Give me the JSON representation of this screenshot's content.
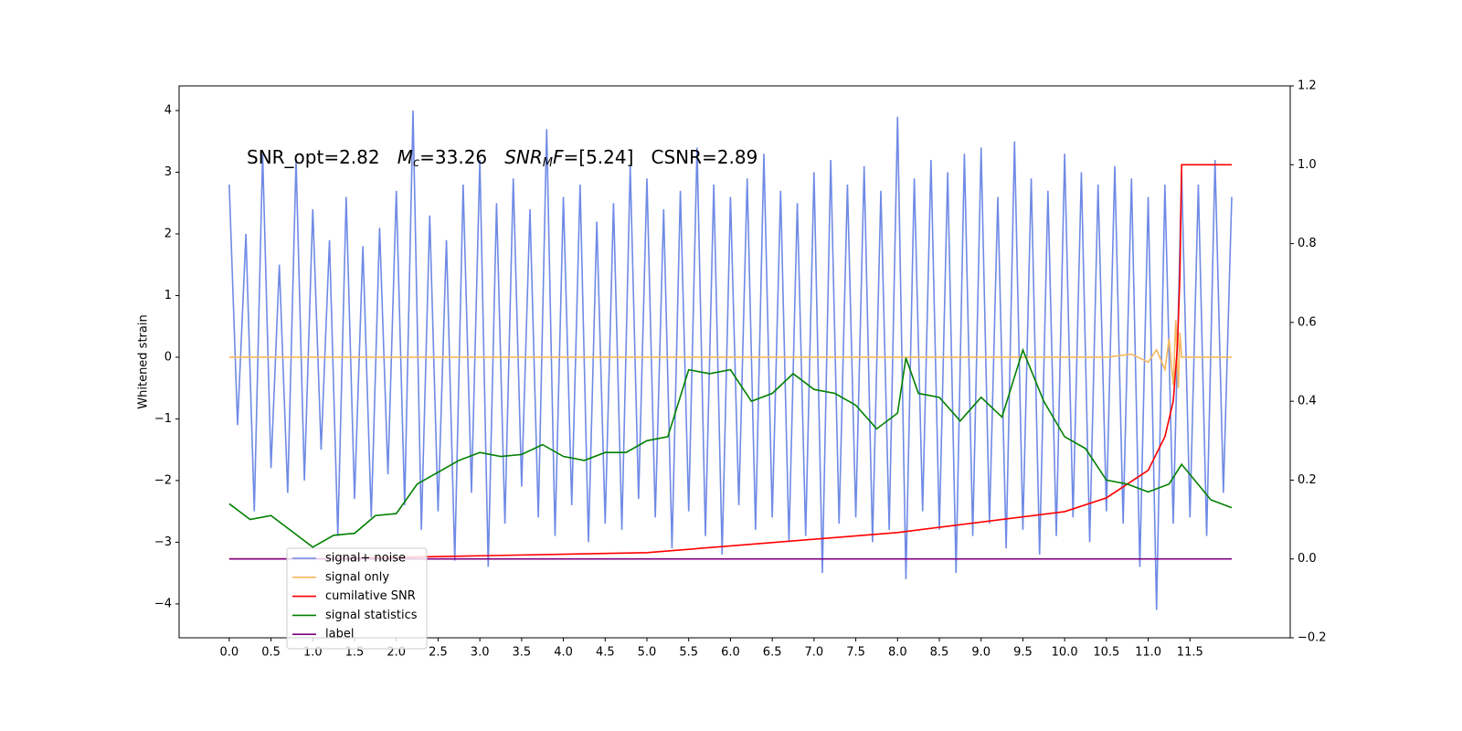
{
  "chart_data": {
    "type": "line",
    "ylabel": "Whitened strain",
    "annotation": [
      {
        "text": "SNR_opt=2.82"
      },
      {
        "italic": "M",
        "sub": "c",
        "text": "=33.26"
      },
      {
        "italic": "SNR",
        "sub": "M",
        "italic_after": "F",
        "text": "=[5.24]"
      },
      {
        "text": "CSNR=2.89"
      }
    ],
    "xlim": [
      -0.6,
      12.7
    ],
    "ylim": [
      -4.55,
      4.4
    ],
    "y2lim": [
      -0.2,
      1.2
    ],
    "xticks": [
      {
        "value": 0,
        "label": "0.0"
      },
      0.5,
      {
        "value": 1,
        "label": "1.0"
      },
      1.5,
      {
        "value": 2,
        "label": "2.0"
      },
      2.5,
      {
        "value": 3,
        "label": "3.0"
      },
      3.5,
      {
        "value": 4,
        "label": "4.0"
      },
      4.5,
      {
        "value": 5,
        "label": "5.0"
      },
      5.5,
      {
        "value": 6,
        "label": "6.0"
      },
      6.5,
      {
        "value": 7,
        "label": "7.0"
      },
      7.5,
      {
        "value": 8,
        "label": "8.0"
      },
      8.5,
      {
        "value": 9,
        "label": "9.0"
      },
      9.5,
      {
        "value": 10,
        "label": "10.0"
      },
      10.5,
      {
        "value": 11,
        "label": "11.0"
      },
      11.5
    ],
    "yticks": [
      {
        "value": -4,
        "label": "−4"
      },
      {
        "value": -3,
        "label": "−3"
      },
      {
        "value": -2,
        "label": "−2"
      },
      {
        "value": -1,
        "label": "−1"
      },
      0,
      1,
      2,
      3,
      4
    ],
    "y2ticks": [
      {
        "value": -0.2,
        "label": "−0.2"
      },
      {
        "value": 0,
        "label": "0.0"
      },
      0.2,
      0.4,
      0.6,
      0.8,
      {
        "value": 1,
        "label": "1.0"
      },
      1.2
    ],
    "legend": "lower left",
    "series": [
      {
        "name": "signal+ noise",
        "color": "#6f8ae6",
        "axis": "y",
        "x": [
          0,
          0.1,
          0.2,
          0.3,
          0.4,
          0.5,
          0.6,
          0.7,
          0.8,
          0.9,
          1,
          1.1,
          1.2,
          1.3,
          1.4,
          1.5,
          1.6,
          1.7,
          1.8,
          1.9,
          2,
          2.1,
          2.2,
          2.3,
          2.4,
          2.5,
          2.6,
          2.7,
          2.8,
          2.9,
          3,
          3.1,
          3.2,
          3.3,
          3.4,
          3.5,
          3.6,
          3.7,
          3.8,
          3.9,
          4,
          4.1,
          4.2,
          4.3,
          4.4,
          4.5,
          4.6,
          4.7,
          4.8,
          4.9,
          5,
          5.1,
          5.2,
          5.3,
          5.4,
          5.5,
          5.6,
          5.7,
          5.8,
          5.9,
          6,
          6.1,
          6.2,
          6.3,
          6.4,
          6.5,
          6.6,
          6.7,
          6.8,
          6.9,
          7,
          7.1,
          7.2,
          7.3,
          7.4,
          7.5,
          7.6,
          7.7,
          7.8,
          7.9,
          8,
          8.1,
          8.2,
          8.3,
          8.4,
          8.5,
          8.6,
          8.7,
          8.8,
          8.9,
          9,
          9.1,
          9.2,
          9.3,
          9.4,
          9.5,
          9.6,
          9.7,
          9.8,
          9.9,
          10,
          10.1,
          10.2,
          10.3,
          10.4,
          10.5,
          10.6,
          10.7,
          10.8,
          10.9,
          11,
          11.1,
          11.2,
          11.3,
          11.4,
          11.5,
          11.6,
          11.7,
          11.8,
          11.9,
          12
        ],
        "values": [
          2.8,
          -1.1,
          2.0,
          -2.5,
          3.3,
          -1.8,
          1.5,
          -2.2,
          3.2,
          -2.0,
          2.4,
          -1.5,
          1.9,
          -2.9,
          2.6,
          -2.3,
          1.8,
          -2.6,
          2.1,
          -1.9,
          2.7,
          -2.4,
          4.0,
          -2.8,
          2.3,
          -2.5,
          1.9,
          -3.3,
          2.8,
          -2.2,
          3.2,
          -3.4,
          2.5,
          -2.7,
          2.9,
          -2.1,
          2.4,
          -2.6,
          3.7,
          -2.9,
          2.6,
          -2.4,
          2.8,
          -3.0,
          2.2,
          -2.7,
          2.5,
          -2.8,
          3.1,
          -2.3,
          2.9,
          -2.6,
          2.4,
          -3.1,
          2.7,
          -2.5,
          3.4,
          -2.9,
          2.8,
          -3.2,
          2.6,
          -2.4,
          2.9,
          -2.8,
          3.3,
          -2.6,
          2.7,
          -3.0,
          2.5,
          -2.9,
          3.0,
          -3.5,
          3.2,
          -2.7,
          2.8,
          -2.6,
          3.1,
          -3.0,
          2.7,
          -2.8,
          3.9,
          -3.6,
          2.9,
          -2.5,
          3.2,
          -2.8,
          3.0,
          -3.5,
          3.3,
          -2.9,
          3.4,
          -2.7,
          2.6,
          -3.1,
          3.5,
          -2.8,
          2.9,
          -3.2,
          2.7,
          -2.9,
          3.3,
          -2.6,
          3.0,
          -3.0,
          2.8,
          -2.5,
          3.1,
          -2.7,
          2.9,
          -3.4,
          2.6,
          -4.1,
          2.8,
          -2.7,
          3.0,
          -2.6,
          2.8,
          -2.9,
          3.2,
          -2.2,
          2.6
        ]
      },
      {
        "name": "signal only",
        "color": "#f5b860",
        "axis": "y",
        "x": [
          0,
          10.5,
          10.8,
          11.0,
          11.1,
          11.2,
          11.25,
          11.3,
          11.33,
          11.36,
          11.38,
          11.4,
          12
        ],
        "values": [
          0,
          0,
          0.05,
          -0.08,
          0.12,
          -0.2,
          0.3,
          -0.45,
          0.6,
          -0.5,
          0.4,
          0,
          0
        ]
      },
      {
        "name": "cumilative SNR",
        "color": "#ff0000",
        "axis": "y2",
        "x": [
          0,
          1,
          3,
          5,
          8,
          10,
          10.5,
          11,
          11.2,
          11.3,
          11.35,
          11.38,
          11.4,
          12
        ],
        "values": [
          0,
          0,
          0.008,
          0.016,
          0.067,
          0.12,
          0.155,
          0.225,
          0.31,
          0.4,
          0.54,
          0.72,
          1.0,
          1.0
        ]
      },
      {
        "name": "signal statistics",
        "color": "#008000",
        "axis": "y2",
        "x": [
          0,
          0.25,
          0.5,
          0.75,
          1,
          1.25,
          1.5,
          1.75,
          2,
          2.25,
          2.5,
          2.75,
          3,
          3.25,
          3.5,
          3.75,
          4,
          4.25,
          4.5,
          4.75,
          5,
          5.25,
          5.5,
          5.75,
          6,
          6.25,
          6.5,
          6.75,
          7,
          7.25,
          7.5,
          7.75,
          8,
          8.1,
          8.25,
          8.5,
          8.75,
          9,
          9.25,
          9.5,
          9.75,
          10,
          10.25,
          10.5,
          10.75,
          11,
          11.25,
          11.4,
          11.75,
          12
        ],
        "values": [
          0.14,
          0.1,
          0.11,
          0.07,
          0.03,
          0.06,
          0.065,
          0.11,
          0.115,
          0.19,
          0.22,
          0.25,
          0.27,
          0.26,
          0.265,
          0.29,
          0.26,
          0.25,
          0.27,
          0.27,
          0.3,
          0.31,
          0.48,
          0.47,
          0.48,
          0.4,
          0.42,
          0.47,
          0.43,
          0.42,
          0.39,
          0.33,
          0.37,
          0.51,
          0.42,
          0.41,
          0.35,
          0.41,
          0.36,
          0.53,
          0.4,
          0.31,
          0.28,
          0.2,
          0.19,
          0.17,
          0.19,
          0.24,
          0.15,
          0.13
        ]
      },
      {
        "name": "label",
        "color": "#800080",
        "axis": "y2",
        "x": [
          0,
          12
        ],
        "values": [
          0,
          0
        ]
      }
    ]
  }
}
